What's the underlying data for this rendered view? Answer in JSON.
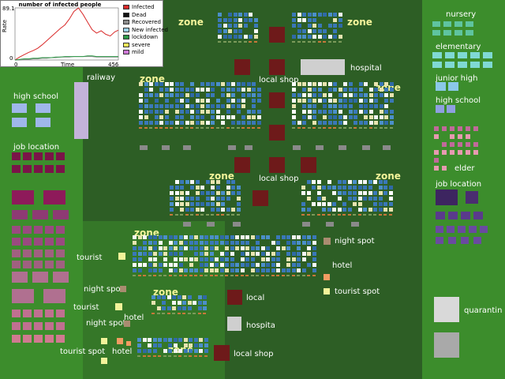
{
  "chart": {
    "title": "number of infected people",
    "ylabel": "Rate",
    "xlabel": "Time",
    "ymax_label": "89.1",
    "ymin_label": "0",
    "xmin_label": "0",
    "xmax_label": "456",
    "legend": [
      {
        "name": "Infected",
        "color": "#d92a2a"
      },
      {
        "name": "Dead",
        "color": "#111111"
      },
      {
        "name": "Recovered",
        "color": "#8c8c8c"
      },
      {
        "name": "New infected",
        "color": "#9bd2ea"
      },
      {
        "name": "lockdown",
        "color": "#2d9a47"
      },
      {
        "name": "severe",
        "color": "#efe95a"
      },
      {
        "name": "mild",
        "color": "#cf79d8"
      }
    ]
  },
  "chart_data": {
    "type": "line",
    "title": "number of infected people",
    "xlabel": "Time",
    "ylabel": "Rate",
    "xlim": [
      0,
      456
    ],
    "ylim": [
      0,
      89.1
    ],
    "x": [
      0,
      20,
      40,
      60,
      80,
      100,
      120,
      140,
      160,
      180,
      200,
      220,
      240,
      260,
      280,
      300,
      320,
      340,
      360,
      380,
      400,
      420,
      440,
      456
    ],
    "series": [
      {
        "name": "Infected",
        "values": [
          0,
          5,
          9,
          13,
          16,
          20,
          26,
          33,
          40,
          47,
          54,
          60,
          70,
          83,
          89,
          78,
          65,
          52,
          46,
          50,
          44,
          41,
          48,
          51
        ]
      },
      {
        "name": "Recovered",
        "values": [
          0,
          0,
          1,
          1,
          2,
          2,
          3,
          3,
          4,
          4,
          5,
          5,
          5,
          6,
          6,
          6,
          6,
          6,
          5,
          5,
          5,
          5,
          5,
          5
        ]
      },
      {
        "name": "lockdown",
        "values": [
          0,
          1,
          2,
          2,
          3,
          3,
          4,
          4,
          4,
          5,
          5,
          6,
          6,
          6,
          6,
          6,
          7,
          7,
          6,
          6,
          6,
          6,
          6,
          6
        ]
      }
    ]
  },
  "labels": {
    "zones": [
      "zone",
      "zone",
      "zone",
      "zone",
      "zone",
      "zone",
      "zone",
      "zone",
      "zone"
    ],
    "local_shop": "local shop",
    "local_shop2": "local shop",
    "local_shop3": "local shop",
    "local": "local",
    "hospital": "hospital",
    "hospita": "hospita",
    "railway": "raliway",
    "high_school_left": "high school",
    "job_location_left": "job location",
    "tourist": [
      "tourist",
      "tourist",
      "tourist spot",
      "tourist spot"
    ],
    "night_spot": [
      "night spot",
      "night spot",
      "night spot"
    ],
    "hotel": [
      "hotel",
      "hotel",
      "hotel"
    ],
    "nursery": "nursery",
    "elementary": "elementary",
    "junior_high": "junior high",
    "high_school_right": "high school",
    "elder": "elder",
    "job_location_right": "job location",
    "quarantin": "quarantin"
  }
}
